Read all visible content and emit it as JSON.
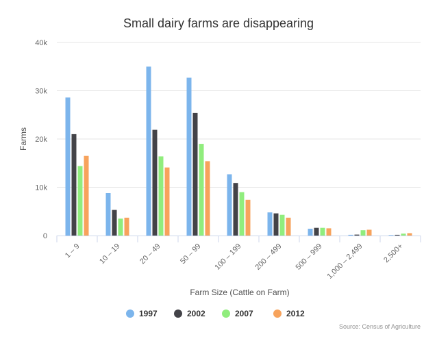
{
  "chart_data": {
    "type": "bar",
    "title": "Small dairy farms are disappearing",
    "xlabel": "Farm Size (Cattle on Farm)",
    "ylabel": "Farms",
    "categories": [
      "1 – 9",
      "10 – 19",
      "20 – 49",
      "50 – 99",
      "100 – 199",
      "200 – 499",
      "500 – 999",
      "1,000 – 2,499",
      "2,500+"
    ],
    "yticks": [
      "0",
      "10k",
      "20k",
      "30k",
      "40k"
    ],
    "ylim": [
      0,
      40000
    ],
    "grid": "horizontal",
    "legend_position": "bottom",
    "series": [
      {
        "name": "1997",
        "color": "#7cb5ec",
        "values": [
          28600,
          8800,
          35000,
          32700,
          12700,
          4800,
          1400,
          150,
          100
        ]
      },
      {
        "name": "2002",
        "color": "#434348",
        "values": [
          21000,
          5300,
          21900,
          25400,
          10900,
          4600,
          1600,
          200,
          150
        ]
      },
      {
        "name": "2007",
        "color": "#90ed7d",
        "values": [
          14400,
          3500,
          16400,
          19000,
          9000,
          4300,
          1600,
          1100,
          400
        ]
      },
      {
        "name": "2012",
        "color": "#f7a35c",
        "values": [
          16500,
          3700,
          14100,
          15400,
          7400,
          3700,
          1500,
          1200,
          500
        ]
      }
    ],
    "credits": "Source: Census of Agriculture"
  }
}
